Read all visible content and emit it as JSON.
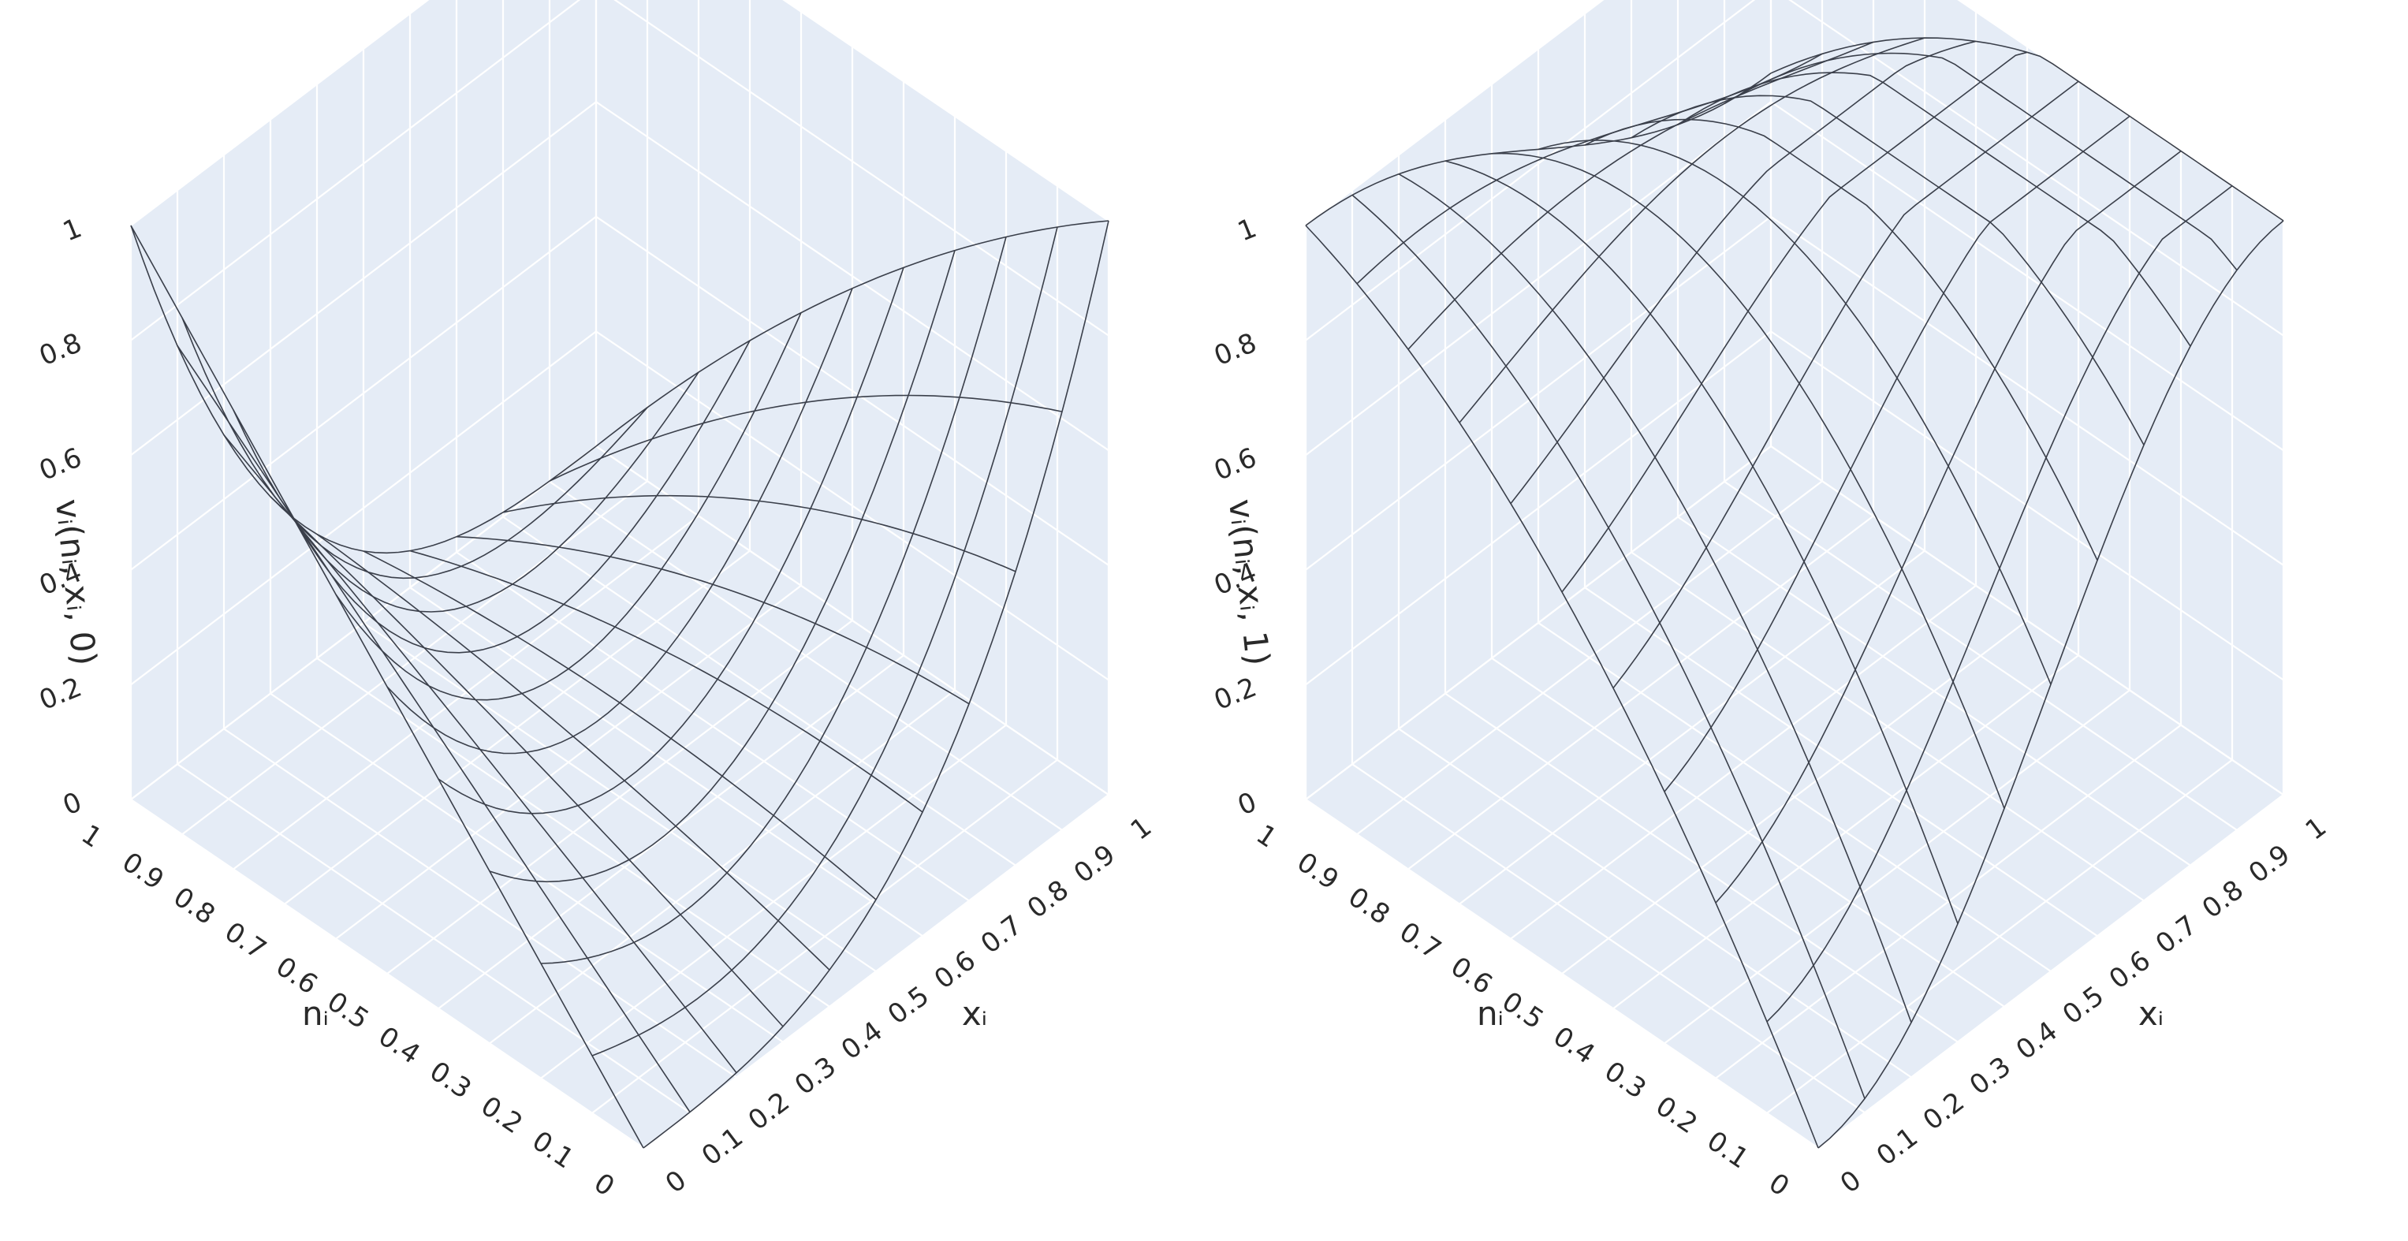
{
  "colors": {
    "pane": "#e5ecf6",
    "grid": "#ffffff",
    "wire": "#2a3f5f",
    "text": "#2a2a2a"
  },
  "chart_data": [
    {
      "type": "surface",
      "title": "",
      "xlabel": "xᵢ",
      "ylabel": "nᵢ",
      "zlabel": "vᵢ(nᵢ, xᵢ, 0)",
      "x_range": [
        0,
        1
      ],
      "y_range": [
        0,
        1
      ],
      "z_range": [
        0,
        1
      ],
      "x_ticks": [
        "0",
        "0.1",
        "0.2",
        "0.3",
        "0.4",
        "0.5",
        "0.6",
        "0.7",
        "0.8",
        "0.9",
        "1"
      ],
      "y_ticks": [
        "0",
        "0.1",
        "0.2",
        "0.3",
        "0.4",
        "0.5",
        "0.6",
        "0.7",
        "0.8",
        "0.9",
        "1"
      ],
      "z_ticks": [
        "0",
        "0.2",
        "0.4",
        "0.6",
        "0.8",
        "1"
      ],
      "grid": true,
      "style": "wireframe",
      "grid_lines_each_axis": 11,
      "corner_values": {
        "x0_n0": 0.0,
        "x1_n0": 1.0,
        "x0_n1": 1.0,
        "x1_n1": 0.0
      }
    },
    {
      "type": "surface",
      "title": "",
      "xlabel": "xᵢ",
      "ylabel": "nᵢ",
      "zlabel": "vᵢ(nᵢ, xᵢ, 1)",
      "x_range": [
        0,
        1
      ],
      "y_range": [
        0,
        1
      ],
      "z_range": [
        0,
        1
      ],
      "x_ticks": [
        "0",
        "0.1",
        "0.2",
        "0.3",
        "0.4",
        "0.5",
        "0.6",
        "0.7",
        "0.8",
        "0.9",
        "1"
      ],
      "y_ticks": [
        "0",
        "0.1",
        "0.2",
        "0.3",
        "0.4",
        "0.5",
        "0.6",
        "0.7",
        "0.8",
        "0.9",
        "1"
      ],
      "z_ticks": [
        "0",
        "0.2",
        "0.4",
        "0.6",
        "0.8",
        "1"
      ],
      "grid": true,
      "style": "wireframe",
      "grid_lines_each_axis": 11,
      "corner_values": {
        "x0_n0": 0.0,
        "x1_n0": 1.0,
        "x0_n1": 1.0,
        "x1_n1": 0.35
      }
    }
  ]
}
